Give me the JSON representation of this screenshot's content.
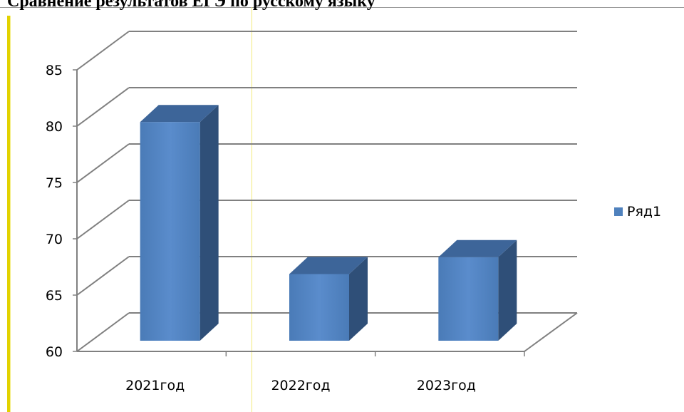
{
  "page_title": "Сравнение результатов ЕГЭ по русскому языку",
  "chart_data": {
    "type": "bar",
    "categories": [
      "2021год",
      "2022год",
      "2023год"
    ],
    "series": [
      {
        "name": "Ряд1",
        "values": [
          81,
          67.5,
          69
        ]
      }
    ],
    "ylim": [
      60,
      85
    ],
    "yticks": [
      60,
      65,
      70,
      75,
      80,
      85
    ],
    "grid": true,
    "legend": "right",
    "colors": {
      "bar_front": "#4f81bd",
      "bar_side": "#2f4f78",
      "bar_top": "#3d6599",
      "grid": "#808080"
    }
  }
}
